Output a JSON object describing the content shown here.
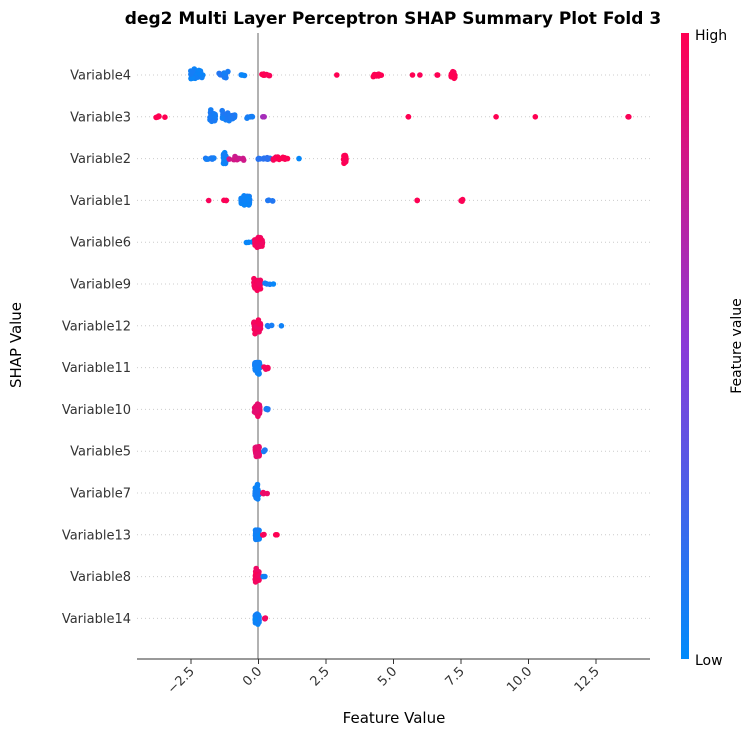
{
  "chart_data": {
    "type": "scatter",
    "subtype": "shap-beeswarm",
    "title": "deg2 Multi Layer Perceptron SHAP Summary Plot Fold 3",
    "xlabel": "Feature Value",
    "ylabel": "SHAP Value",
    "xlim": [
      -4.5,
      14.5
    ],
    "x_ticks": [
      -2.5,
      0.0,
      2.5,
      5.0,
      7.5,
      10.0,
      12.5
    ],
    "x_tick_labels": [
      "−2.5",
      "0.0",
      "2.5",
      "5.0",
      "7.5",
      "10.0",
      "12.5"
    ],
    "zero_line": 0,
    "colorbar": {
      "label": "Feature value",
      "high_label": "High",
      "low_label": "Low",
      "high_color": "#ff0052",
      "low_color": "#008bfb"
    },
    "categories": [
      "Variable4",
      "Variable3",
      "Variable2",
      "Variable1",
      "Variable6",
      "Variable9",
      "Variable12",
      "Variable11",
      "Variable10",
      "Variable5",
      "Variable7",
      "Variable13",
      "Variable8",
      "Variable14"
    ],
    "clusters": [
      [
        {
          "x": -2.3,
          "spread": 0.5,
          "n": 45,
          "h": 0.05,
          "jit": 0.2
        },
        {
          "x": -1.3,
          "spread": 0.35,
          "n": 14,
          "h": 0.1,
          "jit": 0.12
        },
        {
          "x": -0.6,
          "spread": 0.2,
          "n": 3,
          "h": 0.05,
          "jit": 0.05
        },
        {
          "x": 0.3,
          "spread": 0.4,
          "n": 8,
          "h": 1.0,
          "jit": 0.05
        },
        {
          "x": 2.9,
          "spread": 0.0,
          "n": 1,
          "h": 1.0,
          "jit": 0
        },
        {
          "x": 4.4,
          "spread": 0.3,
          "n": 18,
          "h": 1.0,
          "jit": 0.06
        },
        {
          "x": 5.85,
          "spread": 0.35,
          "n": 2,
          "h": 1.0,
          "jit": 0
        },
        {
          "x": 6.7,
          "spread": 0.2,
          "n": 2,
          "h": 1.0,
          "jit": 0
        },
        {
          "x": 7.2,
          "spread": 0.15,
          "n": 22,
          "h": 1.0,
          "jit": 0.14
        }
      ],
      [
        {
          "x": -3.6,
          "spread": 0.8,
          "n": 5,
          "h": 1.0,
          "jit": 0.04
        },
        {
          "x": -1.7,
          "spread": 0.2,
          "n": 35,
          "h": 0.08,
          "jit": 0.24
        },
        {
          "x": -1.1,
          "spread": 0.5,
          "n": 40,
          "h": 0.1,
          "jit": 0.14
        },
        {
          "x": -0.3,
          "spread": 0.25,
          "n": 6,
          "h": 0.1,
          "jit": 0.04
        },
        {
          "x": 0.3,
          "spread": 0.3,
          "n": 2,
          "h": 0.6,
          "jit": 0
        },
        {
          "x": 5.55,
          "spread": 0.0,
          "n": 2,
          "h": 1.0,
          "jit": 0
        },
        {
          "x": 8.8,
          "spread": 0.0,
          "n": 1,
          "h": 1.0,
          "jit": 0
        },
        {
          "x": 10.25,
          "spread": 0.0,
          "n": 1,
          "h": 1.0,
          "jit": 0
        },
        {
          "x": 13.7,
          "spread": 0.1,
          "n": 3,
          "h": 1.0,
          "jit": 0
        }
      ],
      [
        {
          "x": -1.8,
          "spread": 0.35,
          "n": 10,
          "h": 0.1,
          "jit": 0.05
        },
        {
          "x": -1.25,
          "spread": 0.1,
          "n": 35,
          "h": 0.05,
          "jit": 0.22
        },
        {
          "x": -0.8,
          "spread": 0.7,
          "n": 10,
          "h": 0.8,
          "jit": 0.05
        },
        {
          "x": 0.2,
          "spread": 0.5,
          "n": 12,
          "h": 0.15,
          "jit": 0.06
        },
        {
          "x": 0.8,
          "spread": 0.6,
          "n": 16,
          "h": 1.0,
          "jit": 0.05
        },
        {
          "x": 1.5,
          "spread": 0.0,
          "n": 1,
          "h": 0.05,
          "jit": 0
        },
        {
          "x": 3.2,
          "spread": 0.1,
          "n": 28,
          "h": 1.0,
          "jit": 0.14
        }
      ],
      [
        {
          "x": -1.6,
          "spread": 1.2,
          "n": 4,
          "h": 1.0,
          "jit": 0.02
        },
        {
          "x": -0.5,
          "spread": 0.35,
          "n": 55,
          "h": 0.05,
          "jit": 0.2
        },
        {
          "x": 0.4,
          "spread": 0.3,
          "n": 4,
          "h": 0.1,
          "jit": 0.03
        },
        {
          "x": 5.95,
          "spread": 0.2,
          "n": 2,
          "h": 1.0,
          "jit": 0
        },
        {
          "x": 7.55,
          "spread": 0.1,
          "n": 5,
          "h": 1.0,
          "jit": 0.04
        }
      ],
      [
        {
          "x": -0.35,
          "spread": 0.3,
          "n": 3,
          "h": 0.05,
          "jit": 0.02
        },
        {
          "x": 0.0,
          "spread": 0.3,
          "n": 55,
          "h": 0.95,
          "jit": 0.2
        }
      ],
      [
        {
          "x": -0.05,
          "spread": 0.25,
          "n": 50,
          "h": 0.95,
          "jit": 0.2
        },
        {
          "x": 0.3,
          "spread": 0.3,
          "n": 3,
          "h": 0.1,
          "jit": 0.03
        },
        {
          "x": 0.55,
          "spread": 0.0,
          "n": 1,
          "h": 0.05,
          "jit": 0
        }
      ],
      [
        {
          "x": -0.05,
          "spread": 0.25,
          "n": 50,
          "h": 0.95,
          "jit": 0.2
        },
        {
          "x": 0.35,
          "spread": 0.3,
          "n": 3,
          "h": 0.1,
          "jit": 0.03
        },
        {
          "x": 0.85,
          "spread": 0.0,
          "n": 1,
          "h": 0.05,
          "jit": 0
        }
      ],
      [
        {
          "x": -0.05,
          "spread": 0.2,
          "n": 50,
          "h": 0.05,
          "jit": 0.2
        },
        {
          "x": 0.25,
          "spread": 0.2,
          "n": 5,
          "h": 0.95,
          "jit": 0.05
        }
      ],
      [
        {
          "x": -0.05,
          "spread": 0.2,
          "n": 50,
          "h": 0.9,
          "jit": 0.2
        },
        {
          "x": 0.25,
          "spread": 0.2,
          "n": 4,
          "h": 0.1,
          "jit": 0.05
        }
      ],
      [
        {
          "x": -0.05,
          "spread": 0.15,
          "n": 45,
          "h": 0.9,
          "jit": 0.18
        },
        {
          "x": 0.2,
          "spread": 0.1,
          "n": 3,
          "h": 0.1,
          "jit": 0.03
        }
      ],
      [
        {
          "x": -0.05,
          "spread": 0.15,
          "n": 50,
          "h": 0.05,
          "jit": 0.2
        },
        {
          "x": 0.25,
          "spread": 0.2,
          "n": 4,
          "h": 0.95,
          "jit": 0.03
        }
      ],
      [
        {
          "x": -0.05,
          "spread": 0.15,
          "n": 50,
          "h": 0.05,
          "jit": 0.2
        },
        {
          "x": 0.2,
          "spread": 0.15,
          "n": 3,
          "h": 0.95,
          "jit": 0.03
        },
        {
          "x": 0.7,
          "spread": 0.2,
          "n": 2,
          "h": 1.0,
          "jit": 0
        }
      ],
      [
        {
          "x": -0.05,
          "spread": 0.15,
          "n": 50,
          "h": 0.95,
          "jit": 0.2
        },
        {
          "x": 0.2,
          "spread": 0.1,
          "n": 2,
          "h": 0.05,
          "jit": 0.02
        }
      ],
      [
        {
          "x": -0.05,
          "spread": 0.15,
          "n": 50,
          "h": 0.05,
          "jit": 0.2
        },
        {
          "x": 0.25,
          "spread": 0.15,
          "n": 3,
          "h": 0.95,
          "jit": 0.03
        }
      ]
    ]
  }
}
